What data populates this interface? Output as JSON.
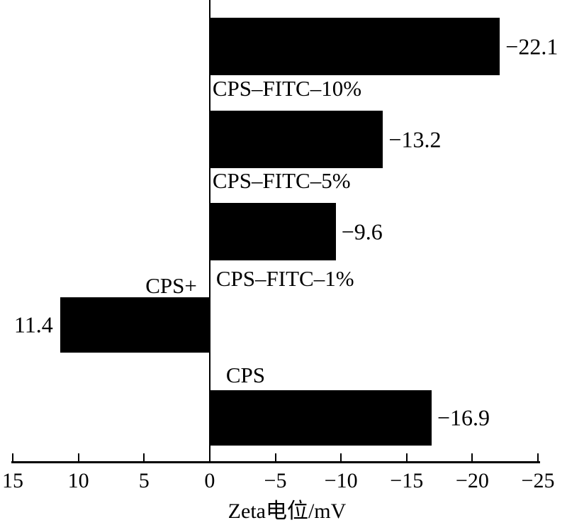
{
  "chart_data": {
    "type": "bar",
    "orientation": "horizontal",
    "title": "",
    "xlabel": "Zeta电位/mV",
    "ylabel": "",
    "categories": [
      "CPS–FITC–10%",
      "CPS–FITC–5%",
      "CPS–FITC–1%",
      "CPS+",
      "CPS"
    ],
    "values": [
      -22.1,
      -13.2,
      -9.6,
      11.4,
      -16.9
    ],
    "value_labels": [
      "−22.1",
      "−13.2",
      "−9.6",
      "11.4",
      "−16.9"
    ],
    "x_ticks": [
      15,
      10,
      5,
      0,
      -5,
      -10,
      -15,
      -20,
      -25
    ],
    "x_tick_labels": [
      "15",
      "10",
      "5",
      "0",
      "−5",
      "−10",
      "−15",
      "−20",
      "−25"
    ],
    "xlim_left_value": 15,
    "xlim_right_value": -25,
    "axis_reversed": true,
    "grid": false,
    "legend": "none",
    "bar_color": "#000000",
    "axis_color": "#000000",
    "text_color": "#000000",
    "background": "#ffffff"
  }
}
